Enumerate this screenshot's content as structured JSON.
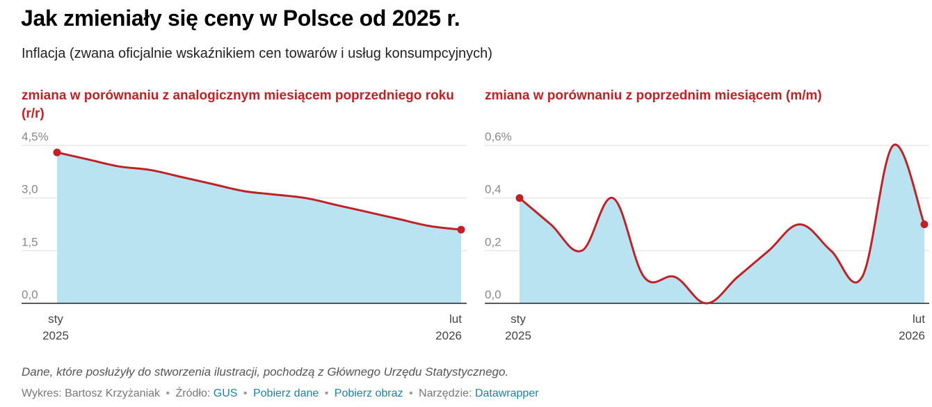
{
  "title": "Jak zmieniały się ceny w Polsce od 2025 r.",
  "subtitle": "Inflacja (zwana oficjalnie wskaźnikiem cen towarów i usług konsumpcyjnych)",
  "colors": {
    "line": "#bf2126",
    "area": "#b9e3f1",
    "grid": "#dddddd",
    "axis": "#222222",
    "link": "#1d81a2"
  },
  "chart_data": [
    {
      "type": "area",
      "title": "zmiana w porównaniu z analogicznym miesiącem poprzedniego roku (r/r)",
      "x": [
        "2025-01",
        "2025-02",
        "2025-03",
        "2025-04",
        "2025-05",
        "2025-06",
        "2025-07",
        "2025-08",
        "2025-09",
        "2025-10",
        "2025-11",
        "2025-12",
        "2026-01",
        "2026-02"
      ],
      "values": [
        4.3,
        4.1,
        3.9,
        3.8,
        3.6,
        3.4,
        3.2,
        3.1,
        3.0,
        2.8,
        2.6,
        2.4,
        2.2,
        2.1
      ],
      "ylim": [
        0,
        4.5
      ],
      "y_ticks": [
        {
          "value": 0,
          "label": "0,0"
        },
        {
          "value": 1.5,
          "label": "1,5"
        },
        {
          "value": 3,
          "label": "3,0"
        },
        {
          "value": 4.5,
          "label": "4,5%"
        }
      ],
      "x_tick_labels": [
        {
          "month": "sty",
          "year": "2025"
        },
        {
          "month": "lut",
          "year": "2026"
        }
      ],
      "grid": true
    },
    {
      "type": "area",
      "title": "zmiana w porównaniu z poprzednim miesiącem (m/m)",
      "x": [
        "2025-01",
        "2025-02",
        "2025-03",
        "2025-04",
        "2025-05",
        "2025-06",
        "2025-07",
        "2025-08",
        "2025-09",
        "2025-10",
        "2025-11",
        "2025-12",
        "2026-01",
        "2026-02"
      ],
      "values": [
        0.4,
        0.3,
        0.2,
        0.4,
        0.1,
        0.1,
        0.0,
        0.1,
        0.2,
        0.3,
        0.2,
        0.1,
        0.6,
        0.3
      ],
      "ylim": [
        0,
        0.6
      ],
      "y_ticks": [
        {
          "value": 0,
          "label": "0,0"
        },
        {
          "value": 0.2,
          "label": "0,2"
        },
        {
          "value": 0.4,
          "label": "0,4"
        },
        {
          "value": 0.6,
          "label": "0,6%"
        }
      ],
      "x_tick_labels": [
        {
          "month": "sty",
          "year": "2025"
        },
        {
          "month": "lut",
          "year": "2026"
        }
      ],
      "grid": true
    }
  ],
  "caption": "Dane, które posłużyły do stworzenia ilustracji, pochodzą z Głównego Urzędu Statystycznego.",
  "credits": {
    "author_prefix": "Wykres: Bartosz Krzyżaniak",
    "separator": "•",
    "source_prefix": "Źródło:",
    "source_link": "GUS",
    "get_data": "Pobierz dane",
    "get_image": "Pobierz obraz",
    "tool_prefix": "Narzędzie:",
    "tool_link": "Datawrapper"
  }
}
